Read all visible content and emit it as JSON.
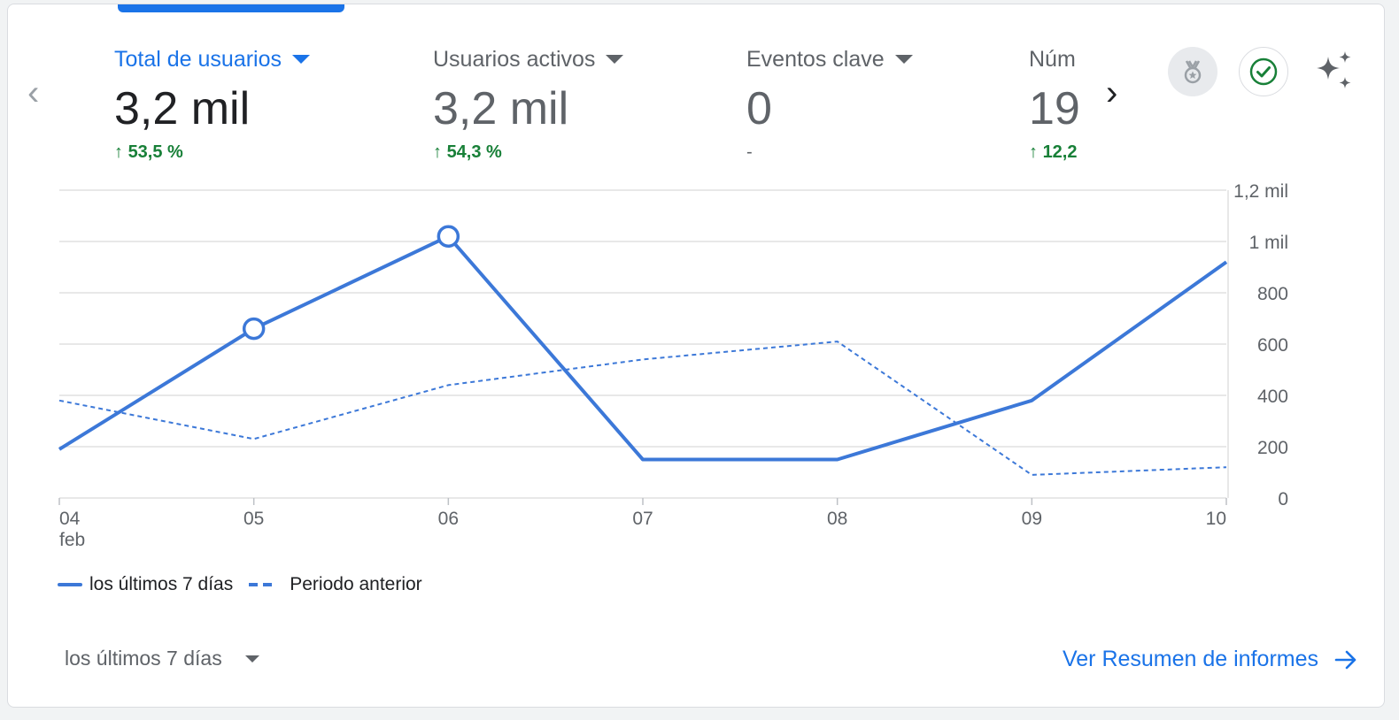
{
  "metrics": [
    {
      "label": "Total de usuarios",
      "value": "3,2 mil",
      "change": "53,5 %",
      "change_arrow": "↑",
      "active": true
    },
    {
      "label": "Usuarios activos",
      "value": "3,2 mil",
      "change": "54,3 %",
      "change_arrow": "↑",
      "active": false
    },
    {
      "label": "Eventos clave",
      "value": "0",
      "change": "-",
      "change_arrow": "",
      "active": false
    },
    {
      "label": "Núm",
      "value": "19",
      "change": "12,2",
      "change_arrow": "↑",
      "active": false
    }
  ],
  "icons": {
    "prev": "chevron-left-icon",
    "next": "chevron-right-icon",
    "badge": "medal-icon",
    "check": "check-circle-icon",
    "sparkle": "sparkle-icon"
  },
  "chart_data": {
    "type": "line",
    "categories": [
      "04",
      "05",
      "06",
      "07",
      "08",
      "09",
      "10"
    ],
    "first_category_sublabel": "feb",
    "series": [
      {
        "name": "los últimos 7 días",
        "style": "solid",
        "values": [
          190,
          660,
          1020,
          150,
          150,
          380,
          920
        ],
        "markers": [
          1,
          2
        ]
      },
      {
        "name": "Periodo anterior",
        "style": "dashed",
        "values": [
          380,
          230,
          440,
          540,
          610,
          90,
          120
        ]
      }
    ],
    "ylim": [
      0,
      1200
    ],
    "yticks": [
      0,
      200,
      400,
      600,
      800,
      1000,
      1200
    ],
    "ytick_labels": [
      "0",
      "200",
      "400",
      "600",
      "800",
      "1 mil",
      "1,2 mil"
    ],
    "y_axis_side": "right",
    "grid": true,
    "legend_position": "bottom-left",
    "colors": {
      "line": "#3c78d8",
      "grid": "#e0e0e0"
    }
  },
  "footer": {
    "range_label": "los últimos 7 días",
    "link_label": "Ver Resumen de informes"
  },
  "colors": {
    "accent": "#1a73e8",
    "positive": "#188038"
  }
}
